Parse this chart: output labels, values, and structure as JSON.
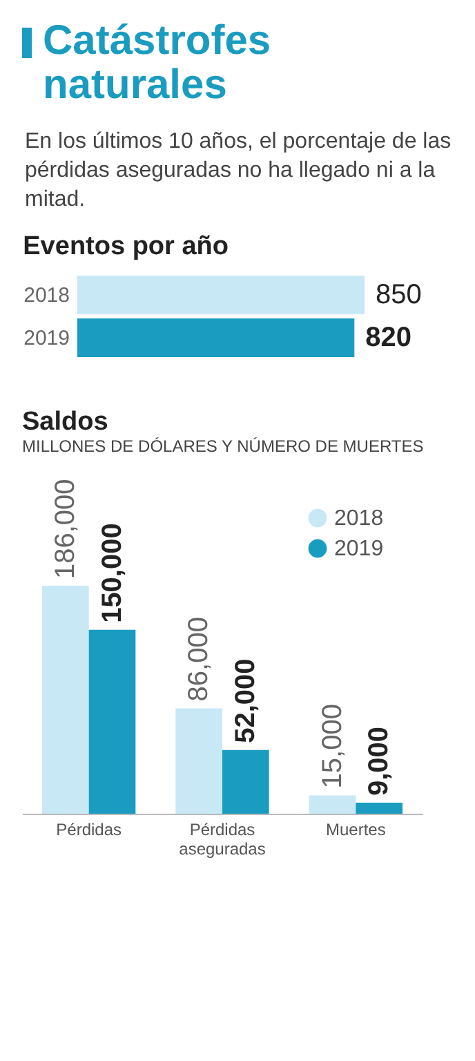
{
  "chart_data": [
    {
      "type": "other",
      "title": "Catástrofes naturales",
      "subtitle": "En los últimos 10 años, el porcentaje de las pérdidas aseguradas no ha llegado ni a la mitad."
    },
    {
      "type": "bar",
      "orientation": "horizontal",
      "title": "Eventos por año",
      "categories": [
        "2018",
        "2019"
      ],
      "values": [
        850,
        820
      ],
      "colors": [
        "#c8e8f6",
        "#1a9cc0"
      ],
      "data_labels": true
    },
    {
      "type": "bar",
      "title": "Saldos",
      "subtitle": "MILLONES DE DÓLARES Y NÚMERO DE MUERTES",
      "categories": [
        "Pérdidas",
        "Pérdidas aseguradas",
        "Muertes"
      ],
      "legend": "top right",
      "series": [
        {
          "name": "2018",
          "color": "#c8e8f6",
          "values": [
            186000,
            86000,
            15000
          ],
          "value_labels": [
            "186,000",
            "86,000",
            "15,000"
          ]
        },
        {
          "name": "2019",
          "color": "#1a9cc0",
          "values": [
            150000,
            52000,
            9000
          ],
          "value_labels": [
            "150,000",
            "52,000",
            "9,000"
          ]
        }
      ]
    }
  ]
}
